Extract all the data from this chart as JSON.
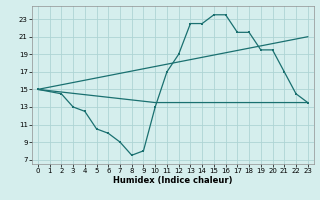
{
  "xlabel": "Humidex (Indice chaleur)",
  "bg_color": "#d5eeed",
  "line_color": "#1a7070",
  "grid_color": "#aed4d4",
  "xlim": [
    -0.5,
    23.5
  ],
  "ylim": [
    6.5,
    24.5
  ],
  "yticks": [
    7,
    9,
    11,
    13,
    15,
    17,
    19,
    21,
    23
  ],
  "xticks": [
    0,
    1,
    2,
    3,
    4,
    5,
    6,
    7,
    8,
    9,
    10,
    11,
    12,
    13,
    14,
    15,
    16,
    17,
    18,
    19,
    20,
    21,
    22,
    23
  ],
  "line1_x": [
    0,
    2,
    3,
    4,
    5,
    6,
    7,
    8,
    9,
    10,
    11,
    12,
    13,
    14,
    15,
    16,
    17,
    18,
    19,
    20,
    21,
    22,
    23
  ],
  "line1_y": [
    15,
    14.5,
    13,
    12.5,
    10.5,
    10,
    9,
    7.5,
    8,
    13,
    17,
    19,
    22.5,
    22.5,
    23.5,
    23.5,
    21.5,
    21.5,
    19.5,
    19.5,
    17,
    14.5,
    13.5
  ],
  "line2_x": [
    0,
    23
  ],
  "line2_y": [
    15,
    21.0
  ],
  "line3_x": [
    0,
    10,
    23
  ],
  "line3_y": [
    15,
    13.5,
    13.5
  ],
  "xlabel_fontsize": 6.0,
  "tick_fontsize": 5.0
}
